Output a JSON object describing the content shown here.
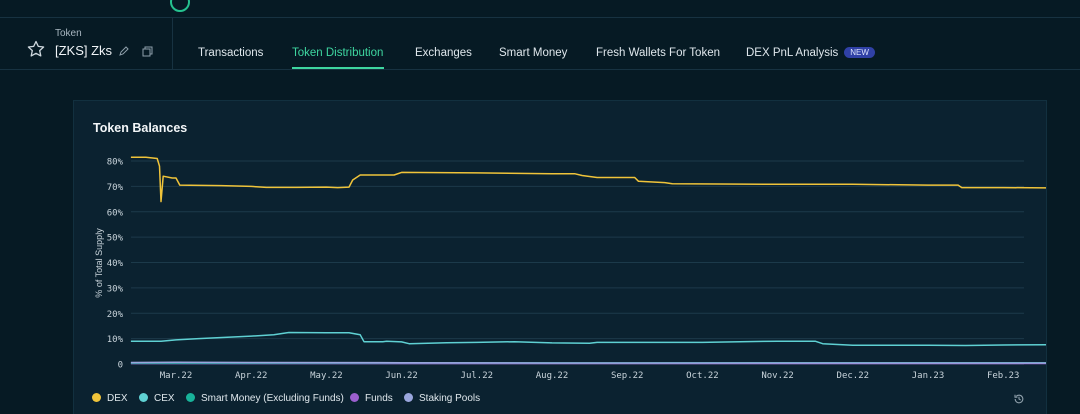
{
  "header": {
    "token_label": "Token",
    "token_name": "[ZKS] Zks"
  },
  "tabs": [
    {
      "label": "Transactions"
    },
    {
      "label": "Token Distribution",
      "active": true
    },
    {
      "label": "Exchanges"
    },
    {
      "label": "Smart Money"
    },
    {
      "label": "Fresh Wallets For Token"
    },
    {
      "label": "DEX PnL Analysis",
      "badge": "NEW"
    }
  ],
  "card": {
    "title": "Token Balances"
  },
  "chart_data": {
    "type": "line",
    "title": "Token Balances",
    "xlabel": "",
    "ylabel": "% of Total Supply",
    "ylim": [
      0,
      80
    ],
    "yticks": [
      0,
      10,
      20,
      30,
      40,
      50,
      60,
      70,
      80
    ],
    "ytick_labels": [
      "0",
      "10%",
      "20%",
      "30%",
      "40%",
      "50%",
      "60%",
      "70%",
      "80%"
    ],
    "xticks": [
      "Mar.22",
      "Apr.22",
      "May.22",
      "Jun.22",
      "Jul.22",
      "Aug.22",
      "Sep.22",
      "Oct.22",
      "Nov.22",
      "Dec.22",
      "Jan.23",
      "Feb.23"
    ],
    "x_range": [
      0,
      12.55
    ],
    "grid": true,
    "legend_position": "bottom-left",
    "series": [
      {
        "name": "DEX",
        "color": "#f0c43a",
        "points": [
          [
            -0.6,
            81.5
          ],
          [
            -0.4,
            81.5
          ],
          [
            -0.25,
            81
          ],
          [
            -0.22,
            78
          ],
          [
            -0.2,
            64
          ],
          [
            -0.17,
            74
          ],
          [
            -0.05,
            73.3
          ],
          [
            0.0,
            73.3
          ],
          [
            0.05,
            70.5
          ],
          [
            0.6,
            70.3
          ],
          [
            1.0,
            70.0
          ],
          [
            1.2,
            69.6
          ],
          [
            1.6,
            69.6
          ],
          [
            2.0,
            69.7
          ],
          [
            2.15,
            69.5
          ],
          [
            2.3,
            69.7
          ],
          [
            2.35,
            72.5
          ],
          [
            2.45,
            74.5
          ],
          [
            2.9,
            74.5
          ],
          [
            3.0,
            75.5
          ],
          [
            4.0,
            75.3
          ],
          [
            5.0,
            75.0
          ],
          [
            5.3,
            75.0
          ],
          [
            5.4,
            74.3
          ],
          [
            5.6,
            73.5
          ],
          [
            6.1,
            73.5
          ],
          [
            6.15,
            72
          ],
          [
            6.5,
            71.5
          ],
          [
            6.6,
            71.0
          ],
          [
            8.0,
            70.8
          ],
          [
            9.0,
            70.8
          ],
          [
            10.0,
            70.5
          ],
          [
            10.4,
            70.5
          ],
          [
            10.45,
            69.5
          ],
          [
            11.0,
            69.5
          ],
          [
            11.6,
            69.4
          ]
        ]
      },
      {
        "name": "CEX",
        "color": "#5fd1d3",
        "points": [
          [
            -0.6,
            9.0
          ],
          [
            -0.2,
            9.0
          ],
          [
            0.0,
            9.5
          ],
          [
            0.3,
            10.0
          ],
          [
            1.0,
            11.0
          ],
          [
            1.3,
            11.5
          ],
          [
            1.5,
            12.4
          ],
          [
            2.0,
            12.3
          ],
          [
            2.3,
            12.3
          ],
          [
            2.45,
            11.5
          ],
          [
            2.5,
            8.8
          ],
          [
            2.75,
            8.8
          ],
          [
            2.8,
            9.0
          ],
          [
            3.0,
            8.7
          ],
          [
            3.1,
            8.0
          ],
          [
            3.6,
            8.4
          ],
          [
            4.0,
            8.5
          ],
          [
            4.5,
            8.8
          ],
          [
            5.0,
            8.3
          ],
          [
            5.5,
            8.2
          ],
          [
            5.6,
            8.5
          ],
          [
            6.5,
            8.5
          ],
          [
            7.0,
            8.5
          ],
          [
            7.5,
            8.8
          ],
          [
            8.0,
            9.0
          ],
          [
            8.5,
            9.0
          ],
          [
            8.6,
            8.0
          ],
          [
            9.0,
            7.4
          ],
          [
            10.0,
            7.4
          ],
          [
            10.5,
            7.3
          ],
          [
            11.0,
            7.5
          ],
          [
            11.6,
            7.6
          ]
        ]
      },
      {
        "name": "Smart Money (Excluding Funds)",
        "color": "#18b39a",
        "points": [
          [
            -0.6,
            0.4
          ],
          [
            11.6,
            0.5
          ]
        ]
      },
      {
        "name": "Funds",
        "color": "#9b5fcf",
        "points": [
          [
            -0.6,
            0.2
          ],
          [
            11.6,
            0.2
          ]
        ]
      },
      {
        "name": "Staking Pools",
        "color": "#9aa6dd",
        "points": [
          [
            -0.6,
            0.6
          ],
          [
            0.0,
            0.7
          ],
          [
            1.0,
            0.6
          ],
          [
            3.0,
            0.5
          ],
          [
            5.0,
            0.4
          ],
          [
            11.6,
            0.4
          ]
        ]
      }
    ]
  }
}
